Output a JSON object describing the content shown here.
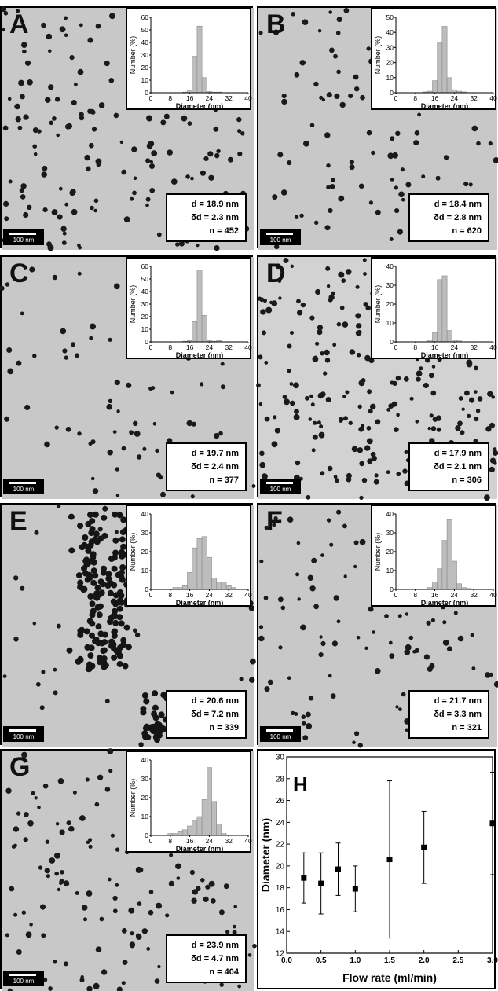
{
  "panels": [
    {
      "letter": "A",
      "d": "d = 18.9 nm",
      "dd": "δd = 2.3 nm",
      "n": "n = 452",
      "scale": "100 nm",
      "ymax": 60,
      "yticks": [
        0,
        10,
        20,
        30,
        40,
        50,
        60
      ],
      "density": 180,
      "seed": 11
    },
    {
      "letter": "B",
      "d": "d = 18.4 nm",
      "dd": "δd = 2.8 nm",
      "n": "n = 620",
      "scale": "100 nm",
      "ymax": 50,
      "yticks": [
        0,
        10,
        20,
        30,
        40,
        50
      ],
      "density": 110,
      "seed": 23
    },
    {
      "letter": "C",
      "d": "d = 19.7 nm",
      "dd": "δd = 2.4 nm",
      "n": "n = 377",
      "scale": "100 nm",
      "ymax": 60,
      "yticks": [
        0,
        10,
        20,
        30,
        40,
        50,
        60
      ],
      "density": 90,
      "seed": 37
    },
    {
      "letter": "D",
      "d": "d = 17.9 nm",
      "dd": "δd = 2.1 nm",
      "n": "n = 306",
      "scale": "100 nm",
      "ymax": 40,
      "yticks": [
        0,
        10,
        20,
        30,
        40
      ],
      "density": 260,
      "seed": 41
    },
    {
      "letter": "E",
      "d": "d = 20.6 nm",
      "dd": "δd = 7.2 nm",
      "n": "n = 339",
      "scale": "100 nm",
      "ymax": 40,
      "yticks": [
        0,
        10,
        20,
        30,
        40
      ],
      "density": 40,
      "seed": 53
    },
    {
      "letter": "F",
      "d": "d = 21.7 nm",
      "dd": "δd = 3.3 nm",
      "n": "n = 321",
      "scale": "100 nm",
      "ymax": 40,
      "yticks": [
        0,
        10,
        20,
        30,
        40
      ],
      "density": 120,
      "seed": 67
    },
    {
      "letter": "G",
      "d": "d = 23.9 nm",
      "dd": "δd = 4.7 nm",
      "n": "n = 404",
      "scale": "100 nm",
      "ymax": 40,
      "yticks": [
        0,
        10,
        20,
        30,
        40
      ],
      "density": 170,
      "seed": 79
    }
  ],
  "panel_h_letter": "H",
  "chart_data": [
    {
      "type": "bar",
      "panel": "A",
      "xlabel": "Diameter (nm)",
      "ylabel": "Number (%)",
      "xticks": [
        0,
        8,
        16,
        24,
        32,
        40
      ],
      "xlim": [
        0,
        40
      ],
      "ylim": [
        0,
        60
      ],
      "bin_width": 2,
      "x": [
        10,
        12,
        14,
        16,
        18,
        20,
        22,
        24,
        26,
        28,
        30
      ],
      "values": [
        0,
        0,
        0.5,
        2,
        29,
        53,
        12,
        1,
        0.5,
        0.5,
        0
      ]
    },
    {
      "type": "bar",
      "panel": "B",
      "xlabel": "Diameter (nm)",
      "ylabel": "Number (%)",
      "xticks": [
        0,
        8,
        16,
        24,
        32,
        40
      ],
      "xlim": [
        0,
        40
      ],
      "ylim": [
        0,
        50
      ],
      "bin_width": 2,
      "x": [
        10,
        12,
        14,
        16,
        18,
        20,
        22,
        24,
        26,
        28,
        30
      ],
      "values": [
        0,
        0.5,
        1,
        8,
        33,
        44,
        10,
        2,
        1,
        0.5,
        0
      ]
    },
    {
      "type": "bar",
      "panel": "C",
      "xlabel": "Diameter (nm)",
      "ylabel": "Number (%)",
      "xticks": [
        0,
        8,
        16,
        24,
        32,
        40
      ],
      "xlim": [
        0,
        40
      ],
      "ylim": [
        0,
        60
      ],
      "bin_width": 2,
      "x": [
        12,
        14,
        16,
        18,
        20,
        22,
        24,
        26,
        28,
        30
      ],
      "values": [
        0,
        0.5,
        1,
        16,
        57,
        21,
        1,
        0.5,
        1,
        0
      ]
    },
    {
      "type": "bar",
      "panel": "D",
      "xlabel": "Diameter (nm)",
      "ylabel": "Number (%)",
      "xticks": [
        0,
        8,
        16,
        24,
        32,
        40
      ],
      "xlim": [
        0,
        40
      ],
      "ylim": [
        0,
        40
      ],
      "bin_width": 2,
      "x": [
        12,
        14,
        16,
        18,
        20,
        22,
        24,
        26,
        28
      ],
      "values": [
        0,
        1,
        5,
        33,
        35,
        6,
        1,
        0.5,
        0
      ]
    },
    {
      "type": "bar",
      "panel": "E",
      "xlabel": "Diameter (nm)",
      "ylabel": "Number (%)",
      "xticks": [
        0,
        8,
        16,
        24,
        32,
        40
      ],
      "xlim": [
        0,
        40
      ],
      "ylim": [
        0,
        40
      ],
      "bin_width": 2,
      "x": [
        10,
        12,
        14,
        16,
        18,
        20,
        22,
        24,
        26,
        28,
        30,
        32,
        34
      ],
      "values": [
        1,
        1,
        2,
        9,
        22,
        27,
        28,
        17,
        6,
        4,
        4,
        2,
        1
      ]
    },
    {
      "type": "bar",
      "panel": "F",
      "xlabel": "Diameter (nm)",
      "ylabel": "Number (%)",
      "xticks": [
        0,
        8,
        16,
        24,
        32,
        40
      ],
      "xlim": [
        0,
        40
      ],
      "ylim": [
        0,
        40
      ],
      "bin_width": 2,
      "x": [
        12,
        14,
        16,
        18,
        20,
        22,
        24,
        26,
        28,
        30,
        32
      ],
      "values": [
        0,
        1,
        4,
        11,
        26,
        37,
        15,
        3,
        1,
        0.5,
        0
      ]
    },
    {
      "type": "bar",
      "panel": "G",
      "xlabel": "Diameter (nm)",
      "ylabel": "Number (%)",
      "xticks": [
        0,
        8,
        16,
        24,
        32,
        40
      ],
      "xlim": [
        0,
        40
      ],
      "ylim": [
        0,
        40
      ],
      "bin_width": 2,
      "x": [
        6,
        8,
        10,
        12,
        14,
        16,
        18,
        20,
        22,
        24,
        26,
        28,
        30,
        32
      ],
      "values": [
        0,
        1,
        1,
        2,
        3,
        5,
        8,
        10,
        19,
        36,
        18,
        6,
        1,
        0
      ]
    },
    {
      "type": "scatter",
      "panel": "H",
      "xlabel": "Flow rate (ml/min)",
      "ylabel": "Diameter (nm)",
      "xlim": [
        0,
        3.0
      ],
      "ylim": [
        12,
        30
      ],
      "xticks": [
        0.0,
        0.5,
        1.0,
        1.5,
        2.0,
        2.5,
        3.0
      ],
      "yticks": [
        12,
        14,
        16,
        18,
        20,
        22,
        24,
        26,
        28,
        30
      ],
      "x": [
        0.25,
        0.5,
        0.75,
        1.0,
        1.5,
        2.0,
        3.0
      ],
      "y": [
        18.9,
        18.4,
        19.7,
        17.9,
        20.6,
        21.7,
        23.9
      ],
      "yerr": [
        2.3,
        2.8,
        2.4,
        2.1,
        7.2,
        3.3,
        4.7
      ]
    }
  ]
}
